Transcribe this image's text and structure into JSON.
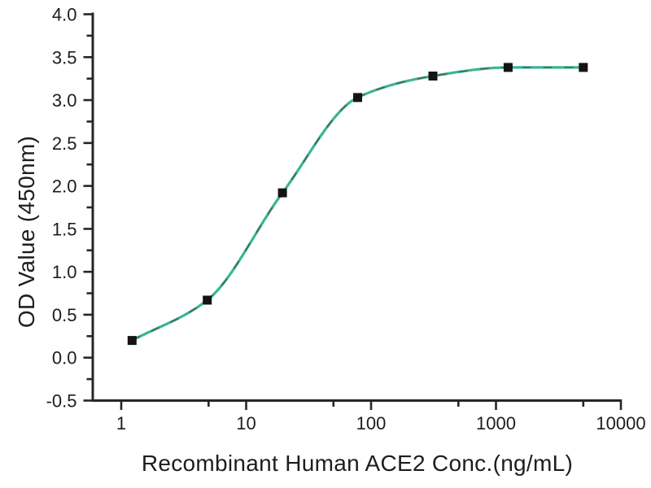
{
  "figure": {
    "background": "#ffffff",
    "axis_color": "#262626",
    "text_color": "#1d1d1d"
  },
  "chart_data": {
    "type": "scatter",
    "subtype": "dose-response-sigmoid-fit",
    "title": "",
    "xlabel": "Recombinant Human ACE2 Conc.(ng/mL)",
    "ylabel": "OD Value (450nm)",
    "x_scale": "log10",
    "grid": false,
    "legend": null,
    "xlim": [
      1,
      10000
    ],
    "ylim": [
      -0.5,
      4.0
    ],
    "x_major_ticks": [
      1,
      10,
      100,
      1000,
      10000
    ],
    "x_major_tick_labels": [
      "1",
      "10",
      "100",
      "1000",
      "10000"
    ],
    "x_minor_ticks": [
      5,
      50,
      500,
      5000
    ],
    "y_major_ticks": [
      -0.5,
      0.0,
      0.5,
      1.0,
      1.5,
      2.0,
      2.5,
      3.0,
      3.5,
      4.0
    ],
    "y_major_tick_labels": [
      "-0.5",
      "0.0",
      "0.5",
      "1.0",
      "1.5",
      "2.0",
      "2.5",
      "3.0",
      "3.5",
      "4.0"
    ],
    "y_minor_ticks": [
      -0.25,
      0.25,
      0.75,
      1.25,
      1.75,
      2.25,
      2.75,
      3.25,
      3.75
    ],
    "series": [
      {
        "x": [
          1.22,
          4.88,
          19.53,
          78.13,
          312.5,
          1250,
          5000
        ],
        "y": [
          0.2,
          0.67,
          1.92,
          3.03,
          3.28,
          3.38,
          3.38
        ],
        "marker": "filled-square",
        "marker_size": 11,
        "marker_color": "#141414",
        "line_color": "#3ab597",
        "line_overlay_color": "#50564b",
        "line_style": "solid-with-dark-dashes"
      }
    ]
  }
}
